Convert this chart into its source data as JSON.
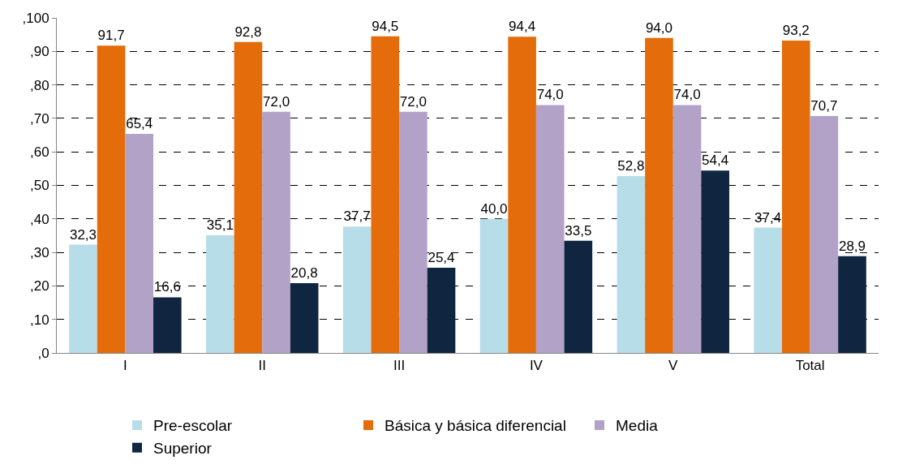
{
  "chart_data": {
    "type": "bar",
    "categories": [
      "I",
      "II",
      "III",
      "IV",
      "V",
      "Total"
    ],
    "series": [
      {
        "name": "Pre-escolar",
        "color": "#b7dde8",
        "values": [
          32.3,
          35.1,
          37.7,
          40.0,
          52.8,
          37.4
        ],
        "value_labels": [
          "32,3",
          "35,1",
          "37,7",
          "40,0",
          "52,8",
          "37,4"
        ]
      },
      {
        "name": "Básica y básica diferencial",
        "color": "#e46c0a",
        "values": [
          91.7,
          92.8,
          94.5,
          94.4,
          94.0,
          93.2
        ],
        "value_labels": [
          "91,7",
          "92,8",
          "94,5",
          "94,4",
          "94,0",
          "93,2"
        ]
      },
      {
        "name": "Media",
        "color": "#b3a2c7",
        "values": [
          65.4,
          72.0,
          72.0,
          74.0,
          74.0,
          70.7
        ],
        "value_labels": [
          "65,4",
          "72,0",
          "72,0",
          "74,0",
          "74,0",
          "70,7"
        ]
      },
      {
        "name": "Superior",
        "color": "#10253f",
        "values": [
          16.6,
          20.8,
          25.4,
          33.5,
          54.4,
          28.9
        ],
        "value_labels": [
          "16,6",
          "20,8",
          "25,4",
          "33,5",
          "54,4",
          "28,9"
        ]
      }
    ],
    "ylim": [
      0,
      100
    ],
    "yticks": [
      {
        "value": 0,
        "label": ",0"
      },
      {
        "value": 10,
        "label": ",10"
      },
      {
        "value": 20,
        "label": ",20"
      },
      {
        "value": 30,
        "label": ",30"
      },
      {
        "value": 40,
        "label": ",40"
      },
      {
        "value": 50,
        "label": ",50"
      },
      {
        "value": 60,
        "label": ",60"
      },
      {
        "value": 70,
        "label": ",70"
      },
      {
        "value": 80,
        "label": ",80"
      },
      {
        "value": 90,
        "label": ",90"
      },
      {
        "value": 100,
        "label": ",100"
      }
    ],
    "grid": "y",
    "legend": "bottom"
  }
}
